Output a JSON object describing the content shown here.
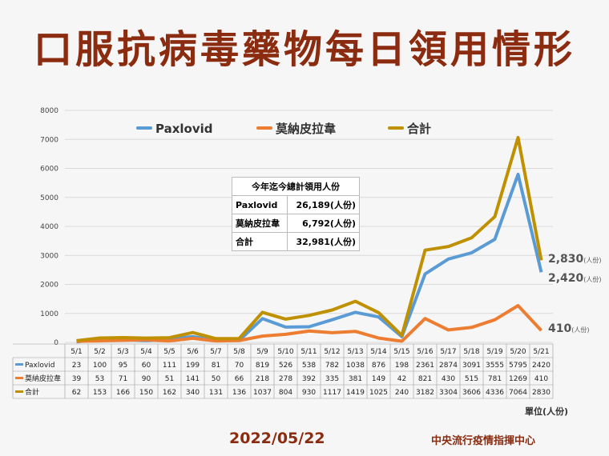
{
  "title": "口服抗病毒藥物每日領用情形",
  "date": "2022/05/22",
  "org": "中央流行疫情指揮中心",
  "unit_note": "單位(人份)",
  "summary": {
    "caption": "今年迄今總計領用人份",
    "rows": [
      {
        "label": "Paxlovid",
        "value": "26,189(人份)"
      },
      {
        "label": "莫納皮拉韋",
        "value": "6,792(人份)"
      },
      {
        "label": "合計",
        "value": "32,981(人份)"
      }
    ]
  },
  "chart_data": {
    "type": "line",
    "categories": [
      "5/1",
      "5/2",
      "5/3",
      "5/4",
      "5/5",
      "5/6",
      "5/7",
      "5/8",
      "5/9",
      "5/10",
      "5/11",
      "5/12",
      "5/13",
      "5/14",
      "5/15",
      "5/16",
      "5/17",
      "5/18",
      "5/19",
      "5/20",
      "5/21"
    ],
    "ylim": [
      0,
      8000
    ],
    "yticks": [
      0,
      1000,
      2000,
      3000,
      4000,
      5000,
      6000,
      7000,
      8000
    ],
    "legend_position": "top",
    "series": [
      {
        "name": "Paxlovid",
        "color": "#5b9bd5",
        "values": [
          23,
          100,
          95,
          60,
          111,
          199,
          81,
          70,
          819,
          526,
          538,
          782,
          1038,
          876,
          198,
          2361,
          2874,
          3091,
          3555,
          5795,
          2420
        ]
      },
      {
        "name": "莫納皮拉韋",
        "color": "#ed7d31",
        "values": [
          39,
          53,
          71,
          90,
          51,
          141,
          50,
          66,
          218,
          278,
          392,
          335,
          381,
          149,
          42,
          821,
          430,
          515,
          781,
          1269,
          410
        ]
      },
      {
        "name": "合計",
        "color": "#bf9000",
        "values": [
          62,
          153,
          166,
          150,
          162,
          340,
          131,
          136,
          1037,
          804,
          930,
          1117,
          1419,
          1025,
          240,
          3182,
          3304,
          3606,
          4336,
          7064,
          2830
        ]
      }
    ],
    "end_labels": [
      {
        "series": 2,
        "value": "2,830",
        "unit": "(人份)"
      },
      {
        "series": 0,
        "value": "2,420",
        "unit": "(人份)"
      },
      {
        "series": 1,
        "value": "410",
        "unit": "(人份)"
      }
    ]
  }
}
